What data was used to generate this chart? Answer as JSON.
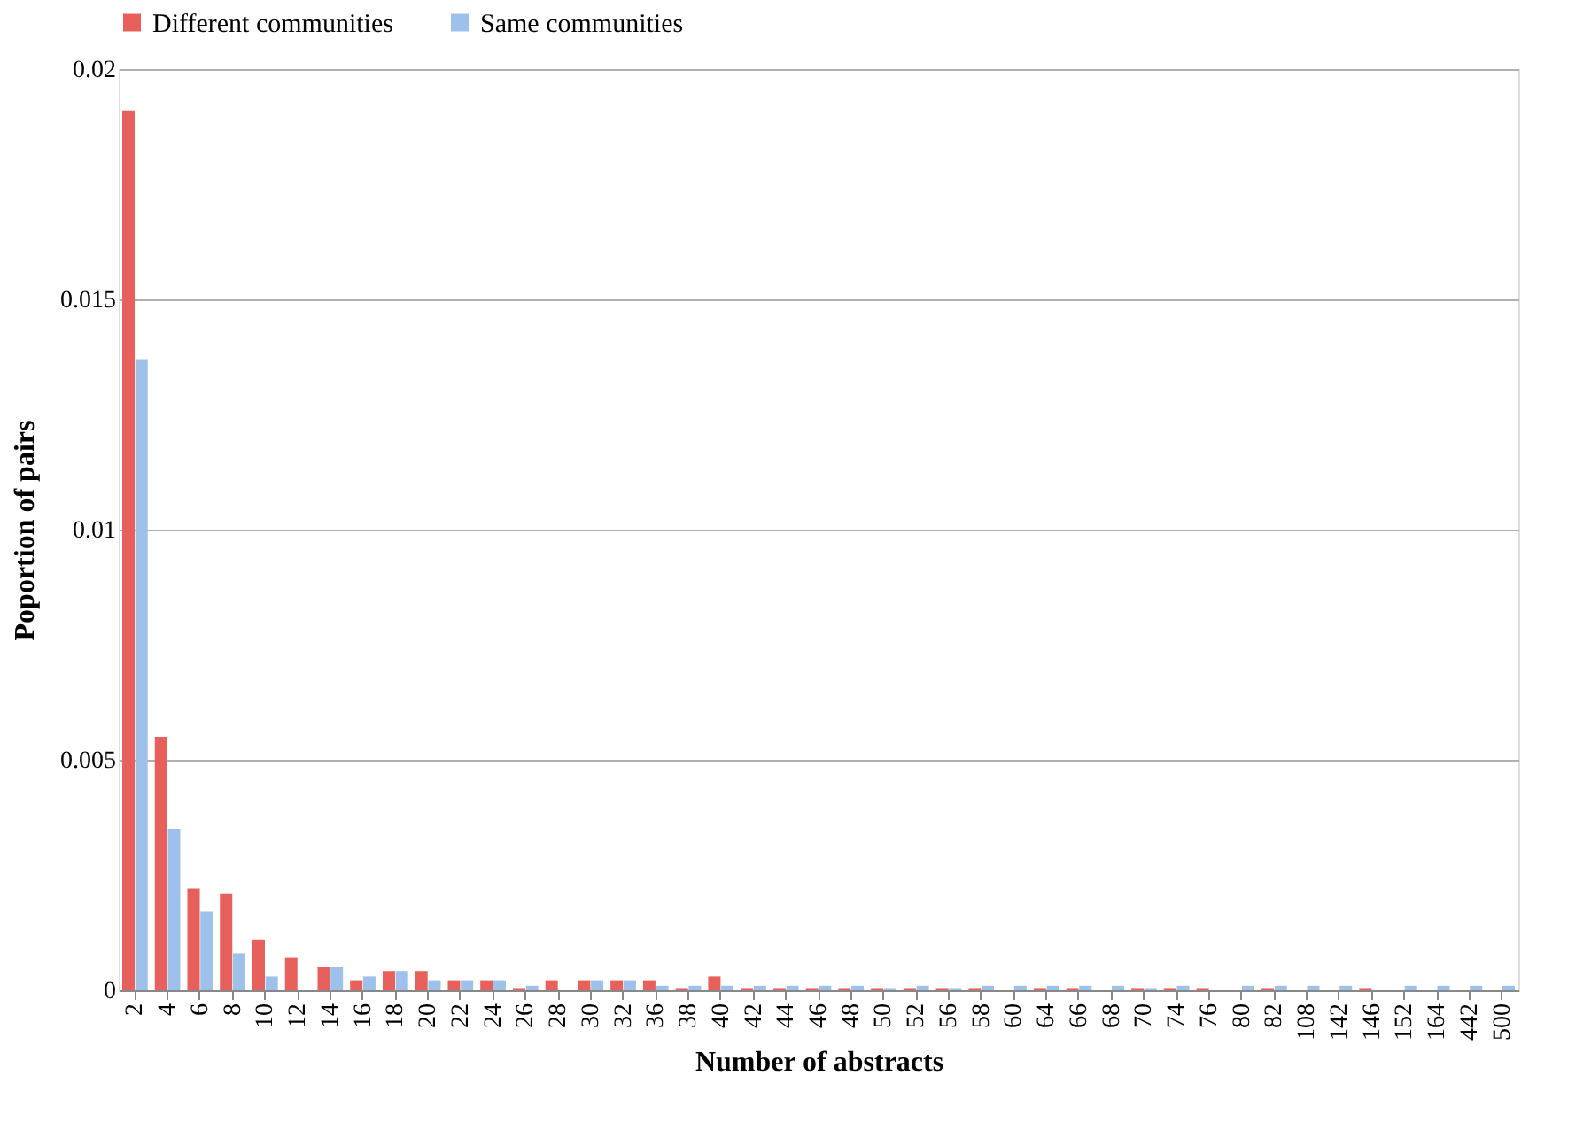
{
  "chart_data": {
    "type": "bar",
    "xlabel": "Number of abstracts",
    "ylabel": "Poportion of pairs",
    "categories": [
      "2",
      "4",
      "6",
      "8",
      "10",
      "12",
      "14",
      "16",
      "18",
      "20",
      "22",
      "24",
      "26",
      "28",
      "30",
      "32",
      "36",
      "38",
      "40",
      "42",
      "44",
      "46",
      "48",
      "50",
      "52",
      "56",
      "58",
      "60",
      "64",
      "66",
      "68",
      "70",
      "74",
      "76",
      "80",
      "82",
      "108",
      "142",
      "146",
      "152",
      "164",
      "442",
      "500"
    ],
    "series": [
      {
        "name": "Different communities",
        "color": "#e8605c",
        "values": [
          0.0191,
          0.0055,
          0.0022,
          0.0021,
          0.0011,
          0.0007,
          0.0005,
          0.0002,
          0.0004,
          0.0004,
          0.0002,
          0.0002,
          3e-05,
          0.0002,
          0.0002,
          0.0002,
          0.0002,
          3e-05,
          0.0003,
          3e-05,
          3e-05,
          3e-05,
          3e-05,
          3e-05,
          3e-05,
          3e-05,
          3e-05,
          0,
          3e-05,
          3e-05,
          0,
          3e-05,
          3e-05,
          3e-05,
          0,
          3e-05,
          0,
          0,
          3e-05,
          0,
          0,
          0,
          0
        ]
      },
      {
        "name": "Same communities",
        "color": "#9dc1ea",
        "values": [
          0.0137,
          0.0035,
          0.0017,
          0.0008,
          0.0003,
          0,
          0.0005,
          0.0003,
          0.0004,
          0.0002,
          0.0002,
          0.0002,
          0.0001,
          0,
          0.0002,
          0.0002,
          0.0001,
          0.0001,
          0.0001,
          0.0001,
          0.0001,
          0.0001,
          0.0001,
          3e-05,
          0.0001,
          3e-05,
          0.0001,
          0.0001,
          0.0001,
          0.0001,
          0.0001,
          3e-05,
          0.0001,
          0,
          0.0001,
          0.0001,
          0.0001,
          0.0001,
          0,
          0.0001,
          0.0001,
          0.0001,
          0.0001
        ]
      }
    ],
    "ylim": [
      0,
      0.02
    ],
    "yticks": [
      0,
      0.005,
      0.01,
      0.015,
      0.02
    ],
    "grid": "y",
    "legend": "top"
  }
}
